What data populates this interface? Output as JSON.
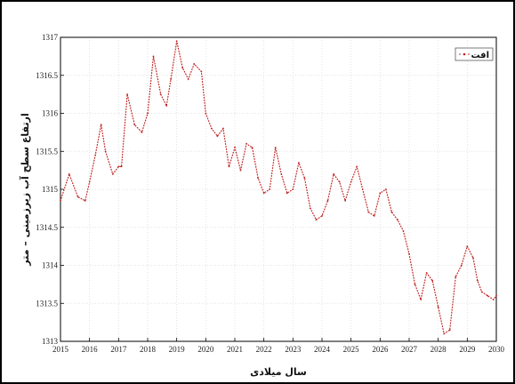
{
  "chart_data": {
    "type": "line",
    "xlabel": "سال میلادی",
    "ylabel": "ارتفاع سطح آب زیرزمینی – متر",
    "xlim": [
      2015,
      2030
    ],
    "ylim": [
      1313,
      1317
    ],
    "x_ticks": [
      "2015",
      "2016",
      "2017",
      "2018",
      "2019",
      "2020",
      "2021",
      "2022",
      "2023",
      "2024",
      "2025",
      "2026",
      "2027",
      "2028",
      "2029",
      "2030"
    ],
    "y_ticks": [
      "1313",
      "1313.5",
      "1314",
      "1314.5",
      "1315",
      "1315.5",
      "1316",
      "1316.5",
      "1317"
    ],
    "grid": true,
    "legend_position": "top-right",
    "series": [
      {
        "name": "افت",
        "color": "#c02020",
        "marker": "dot",
        "x": [
          2015.0,
          2015.3,
          2015.6,
          2015.85,
          2016.0,
          2016.2,
          2016.4,
          2016.55,
          2016.8,
          2017.0,
          2017.1,
          2017.3,
          2017.55,
          2017.8,
          2018.0,
          2018.2,
          2018.45,
          2018.65,
          2018.8,
          2019.0,
          2019.2,
          2019.4,
          2019.6,
          2019.85,
          2020.0,
          2020.2,
          2020.4,
          2020.6,
          2020.8,
          2021.0,
          2021.2,
          2021.4,
          2021.6,
          2021.8,
          2022.0,
          2022.2,
          2022.4,
          2022.6,
          2022.8,
          2023.0,
          2023.2,
          2023.4,
          2023.6,
          2023.8,
          2024.0,
          2024.2,
          2024.4,
          2024.6,
          2024.8,
          2025.0,
          2025.2,
          2025.4,
          2025.6,
          2025.8,
          2026.0,
          2026.2,
          2026.4,
          2026.6,
          2026.8,
          2027.0,
          2027.2,
          2027.4,
          2027.6,
          2027.8,
          2028.0,
          2028.2,
          2028.4,
          2028.6,
          2028.8,
          2029.0,
          2029.2,
          2029.35,
          2029.5,
          2029.7,
          2029.9,
          2030.0
        ],
        "y": [
          1314.85,
          1315.2,
          1314.9,
          1314.85,
          1315.1,
          1315.45,
          1315.85,
          1315.5,
          1315.2,
          1315.3,
          1315.3,
          1316.25,
          1315.85,
          1315.75,
          1316.0,
          1316.75,
          1316.25,
          1316.1,
          1316.45,
          1316.95,
          1316.6,
          1316.45,
          1316.65,
          1316.55,
          1316.0,
          1315.8,
          1315.7,
          1315.8,
          1315.3,
          1315.55,
          1315.25,
          1315.6,
          1315.55,
          1315.15,
          1314.95,
          1315.0,
          1315.55,
          1315.2,
          1314.95,
          1315.0,
          1315.35,
          1315.15,
          1314.75,
          1314.6,
          1314.65,
          1314.85,
          1315.2,
          1315.1,
          1314.85,
          1315.1,
          1315.3,
          1315.0,
          1314.7,
          1314.65,
          1314.95,
          1315.0,
          1314.7,
          1314.6,
          1314.45,
          1314.15,
          1313.75,
          1313.55,
          1313.9,
          1313.8,
          1313.45,
          1313.1,
          1313.15,
          1313.85,
          1314.0,
          1314.25,
          1314.1,
          1313.8,
          1313.65,
          1313.6,
          1313.55,
          1313.6
        ]
      }
    ]
  }
}
